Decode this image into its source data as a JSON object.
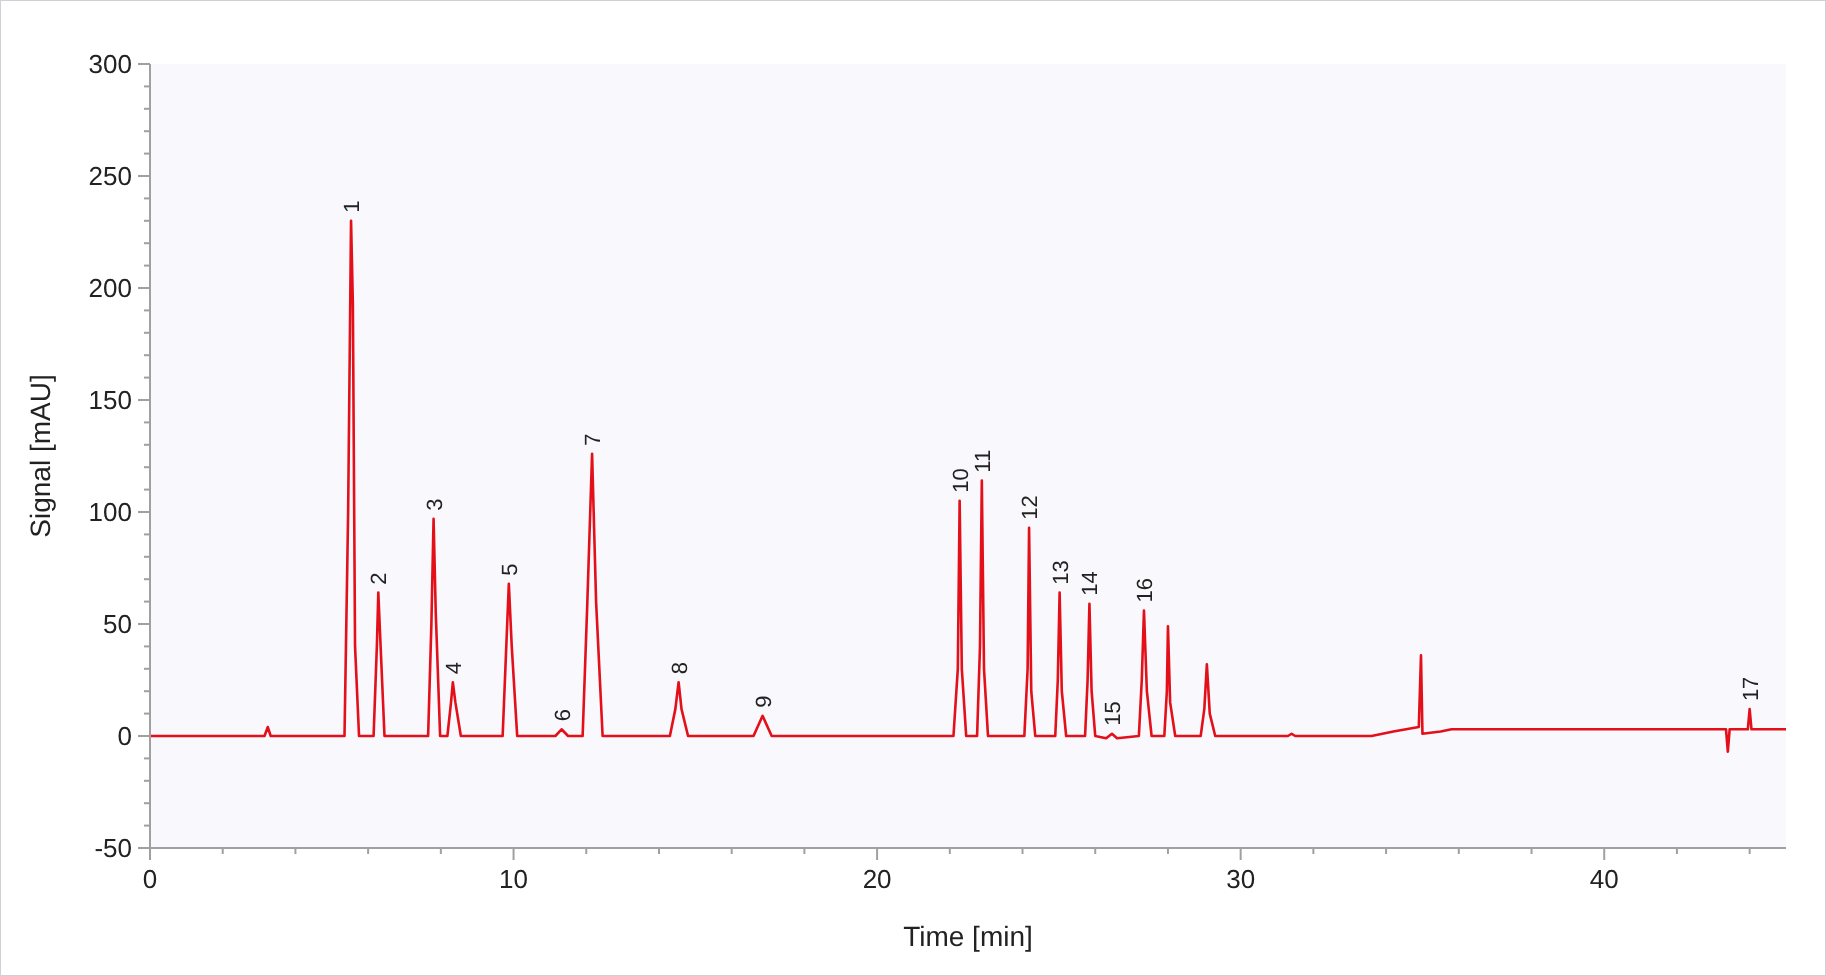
{
  "chart_data": {
    "type": "line",
    "xlabel": "Time [min]",
    "ylabel": "Signal [mAU]",
    "xlim": [
      0,
      45
    ],
    "ylim": [
      -50,
      300
    ],
    "xticks": [
      0,
      {
        "value": 2,
        "label": null
      },
      {
        "value": 4,
        "label": null
      },
      {
        "value": 6,
        "label": null
      },
      {
        "value": 8,
        "label": null
      },
      10,
      {
        "value": 12,
        "label": null
      },
      {
        "value": 14,
        "label": null
      },
      {
        "value": 16,
        "label": null
      },
      {
        "value": 18,
        "label": null
      },
      20,
      {
        "value": 22,
        "label": null
      },
      {
        "value": 24,
        "label": null
      },
      {
        "value": 26,
        "label": null
      },
      {
        "value": 28,
        "label": null
      },
      30,
      {
        "value": 32,
        "label": null
      },
      {
        "value": 34,
        "label": null
      },
      {
        "value": 36,
        "label": null
      },
      {
        "value": 38,
        "label": null
      },
      40,
      {
        "value": 42,
        "label": null
      },
      {
        "value": 44,
        "label": null
      }
    ],
    "yticks": [
      -50,
      {
        "value": -40,
        "label": null
      },
      {
        "value": -30,
        "label": null
      },
      {
        "value": -20,
        "label": null
      },
      {
        "value": -10,
        "label": null
      },
      0,
      {
        "value": 10,
        "label": null
      },
      {
        "value": 20,
        "label": null
      },
      {
        "value": 30,
        "label": null
      },
      {
        "value": 40,
        "label": null
      },
      50,
      {
        "value": 60,
        "label": null
      },
      {
        "value": 70,
        "label": null
      },
      {
        "value": 80,
        "label": null
      },
      {
        "value": 90,
        "label": null
      },
      100,
      {
        "value": 110,
        "label": null
      },
      {
        "value": 120,
        "label": null
      },
      {
        "value": 130,
        "label": null
      },
      {
        "value": 140,
        "label": null
      },
      150,
      {
        "value": 160,
        "label": null
      },
      {
        "value": 170,
        "label": null
      },
      {
        "value": 180,
        "label": null
      },
      {
        "value": 190,
        "label": null
      },
      200,
      {
        "value": 210,
        "label": null
      },
      {
        "value": 220,
        "label": null
      },
      {
        "value": 230,
        "label": null
      },
      {
        "value": 240,
        "label": null
      },
      250,
      {
        "value": 260,
        "label": null
      },
      {
        "value": 270,
        "label": null
      },
      {
        "value": 280,
        "label": null
      },
      {
        "value": 290,
        "label": null
      },
      300
    ],
    "grid": false,
    "marker": "none",
    "line_style": "solid",
    "series": [
      {
        "color": "#e3101a",
        "x": [
          0,
          3.15,
          3.24,
          3.32,
          5.35,
          5.45,
          5.53,
          5.58,
          5.64,
          5.75,
          6.15,
          6.24,
          6.28,
          6.33,
          6.45,
          7.65,
          7.74,
          7.8,
          7.86,
          7.98,
          8.18,
          8.28,
          8.33,
          8.4,
          8.55,
          9.7,
          9.8,
          9.87,
          9.95,
          10.1,
          11.15,
          11.32,
          11.5,
          11.9,
          12.03,
          12.16,
          12.27,
          12.45,
          14.3,
          14.45,
          14.54,
          14.62,
          14.8,
          16.6,
          16.85,
          17.1,
          22.1,
          22.22,
          22.27,
          22.33,
          22.45,
          22.75,
          22.83,
          22.88,
          22.94,
          23.05,
          24.05,
          24.14,
          24.18,
          24.24,
          24.35,
          24.9,
          24.97,
          25.02,
          25.08,
          25.2,
          25.72,
          25.79,
          25.84,
          25.9,
          26.0,
          26.3,
          26.46,
          26.6,
          27.2,
          27.28,
          27.34,
          27.42,
          27.55,
          27.9,
          27.97,
          28.0,
          28.06,
          28.2,
          28.9,
          29.0,
          29.07,
          29.15,
          29.3,
          31.3,
          31.4,
          31.5,
          33.6,
          34.2,
          34.9,
          34.96,
          35.0,
          35.5,
          35.8,
          43.35,
          43.4,
          43.45,
          43.95,
          44.0,
          44.05,
          45
        ],
        "values": [
          0,
          0,
          4,
          0,
          0,
          100,
          230,
          193,
          40,
          0,
          0,
          40,
          64,
          45,
          0,
          0,
          50,
          97,
          55,
          0,
          0,
          15,
          24,
          15,
          0,
          0,
          40,
          68,
          40,
          0,
          0,
          3,
          0,
          0,
          60,
          126,
          60,
          0,
          0,
          12,
          24,
          12,
          0,
          0,
          9,
          0,
          0,
          30,
          105,
          30,
          0,
          0,
          40,
          114,
          30,
          0,
          0,
          30,
          93,
          20,
          0,
          0,
          25,
          64,
          20,
          0,
          0,
          25,
          59,
          20,
          0,
          -1,
          1,
          -1,
          0,
          25,
          56,
          20,
          0,
          0,
          20,
          49,
          15,
          0,
          0,
          12,
          32,
          10,
          0,
          0,
          1,
          0,
          0,
          2,
          4,
          36,
          1,
          2,
          3,
          3,
          -7,
          3,
          3,
          12,
          3,
          3
        ]
      }
    ],
    "annotations": [
      {
        "text": "1",
        "x": 5.53,
        "y": 230
      },
      {
        "text": "2",
        "x": 6.28,
        "y": 64
      },
      {
        "text": "3",
        "x": 7.8,
        "y": 97
      },
      {
        "text": "4",
        "x": 8.33,
        "y": 24
      },
      {
        "text": "5",
        "x": 9.87,
        "y": 68
      },
      {
        "text": "6",
        "x": 11.32,
        "y": 3
      },
      {
        "text": "7",
        "x": 12.16,
        "y": 126
      },
      {
        "text": "8",
        "x": 14.54,
        "y": 24
      },
      {
        "text": "9",
        "x": 16.85,
        "y": 9
      },
      {
        "text": "10",
        "x": 22.27,
        "y": 105
      },
      {
        "text": "11",
        "x": 22.88,
        "y": 114
      },
      {
        "text": "12",
        "x": 24.18,
        "y": 93
      },
      {
        "text": "13",
        "x": 25.02,
        "y": 64
      },
      {
        "text": "14",
        "x": 25.84,
        "y": 59
      },
      {
        "text": "15",
        "x": 26.46,
        "y": 1
      },
      {
        "text": "16",
        "x": 27.34,
        "y": 56
      },
      {
        "text": "17",
        "x": 44.0,
        "y": 12
      }
    ]
  }
}
